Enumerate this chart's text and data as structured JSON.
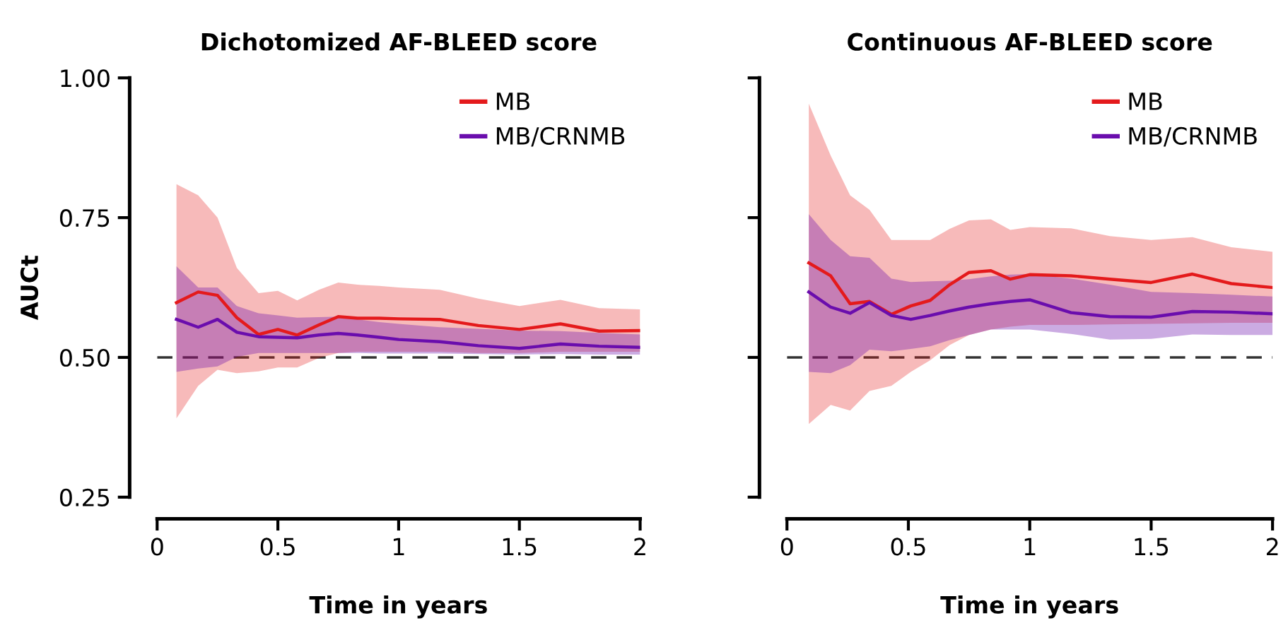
{
  "chart_data": [
    {
      "type": "line",
      "title": "Dichotomized AF-BLEED score",
      "xlabel": "Time in years",
      "ylabel": "AUCt",
      "xlim": [
        0,
        2
      ],
      "xticks": [
        0,
        0.5,
        1,
        1.5,
        2
      ],
      "ylim": [
        0.25,
        1.0
      ],
      "yticks": [
        {
          "value": 0.25,
          "label": "0.25"
        },
        {
          "value": 0.5,
          "label": "0.50"
        },
        {
          "value": 0.75,
          "label": "0.75"
        },
        {
          "value": 1.0,
          "label": "1.00"
        }
      ],
      "grid": false,
      "legend": "top right",
      "line_style": "solid",
      "ref_lines": [
        {
          "axis": "y",
          "value": 0.5,
          "color": "#333333",
          "line_style": "dashed"
        }
      ],
      "x": [
        0.08,
        0.17,
        0.25,
        0.33,
        0.42,
        0.5,
        0.58,
        0.67,
        0.75,
        0.83,
        0.92,
        1.0,
        1.17,
        1.33,
        1.5,
        1.67,
        1.83,
        2.0
      ],
      "series": [
        {
          "name": "MB",
          "color": "#e41a1c",
          "values": [
            0.598,
            0.617,
            0.611,
            0.571,
            0.541,
            0.55,
            0.54,
            0.558,
            0.573,
            0.57,
            0.57,
            0.569,
            0.568,
            0.557,
            0.55,
            0.56,
            0.547,
            0.548
          ],
          "upper": [
            0.81,
            0.79,
            0.75,
            0.66,
            0.615,
            0.619,
            0.602,
            0.621,
            0.634,
            0.63,
            0.628,
            0.625,
            0.621,
            0.605,
            0.592,
            0.603,
            0.588,
            0.586
          ],
          "lower": [
            0.391,
            0.449,
            0.478,
            0.472,
            0.475,
            0.482,
            0.482,
            0.499,
            0.508,
            0.51,
            0.51,
            0.51,
            0.51,
            0.508,
            0.508,
            0.51,
            0.51,
            0.51
          ]
        },
        {
          "name": "MB/CRNMB",
          "color": "#6a0dad",
          "values": [
            0.568,
            0.554,
            0.568,
            0.545,
            0.537,
            0.536,
            0.535,
            0.54,
            0.543,
            0.54,
            0.536,
            0.532,
            0.528,
            0.521,
            0.516,
            0.524,
            0.52,
            0.518
          ],
          "upper": [
            0.663,
            0.625,
            0.625,
            0.592,
            0.579,
            0.575,
            0.571,
            0.572,
            0.573,
            0.568,
            0.563,
            0.56,
            0.554,
            0.551,
            0.548,
            0.547,
            0.544,
            0.541
          ],
          "lower": [
            0.474,
            0.48,
            0.484,
            0.501,
            0.508,
            0.508,
            0.508,
            0.508,
            0.508,
            0.508,
            0.507,
            0.507,
            0.507,
            0.506,
            0.505,
            0.506,
            0.505,
            0.505
          ]
        }
      ]
    },
    {
      "type": "line",
      "title": "Continuous AF-BLEED score",
      "xlabel": "Time in years",
      "xlim": [
        0,
        2
      ],
      "xticks": [
        0,
        0.5,
        1,
        1.5,
        2
      ],
      "ylim": [
        0.25,
        1.0
      ],
      "yticks": [
        {
          "value": 0.25,
          "label": null
        },
        {
          "value": 0.5,
          "label": null
        },
        {
          "value": 0.75,
          "label": null
        },
        {
          "value": 1.0,
          "label": null
        }
      ],
      "tick_labels": "x",
      "grid": false,
      "legend": "top right",
      "line_style": "solid",
      "ref_lines": [
        {
          "axis": "y",
          "value": 0.5,
          "color": "#333333",
          "line_style": "dashed"
        }
      ],
      "x": [
        0.09,
        0.18,
        0.26,
        0.34,
        0.43,
        0.51,
        0.59,
        0.67,
        0.75,
        0.84,
        0.92,
        1.0,
        1.17,
        1.33,
        1.5,
        1.67,
        1.83,
        2.0
      ],
      "series": [
        {
          "name": "MB",
          "color": "#e41a1c",
          "values": [
            0.669,
            0.646,
            0.596,
            0.6,
            0.577,
            0.592,
            0.602,
            0.63,
            0.652,
            0.655,
            0.64,
            0.648,
            0.646,
            0.64,
            0.634,
            0.649,
            0.632,
            0.625
          ],
          "upper": [
            0.954,
            0.861,
            0.79,
            0.764,
            0.71,
            0.71,
            0.71,
            0.73,
            0.745,
            0.747,
            0.728,
            0.733,
            0.731,
            0.717,
            0.71,
            0.715,
            0.697,
            0.689
          ],
          "lower": [
            0.381,
            0.415,
            0.405,
            0.44,
            0.449,
            0.474,
            0.495,
            0.522,
            0.54,
            0.55,
            0.555,
            0.558,
            0.558,
            0.559,
            0.56,
            0.561,
            0.562,
            0.562
          ]
        },
        {
          "name": "MB/CRNMB",
          "color": "#6a0dad",
          "values": [
            0.617,
            0.59,
            0.579,
            0.598,
            0.575,
            0.568,
            0.575,
            0.583,
            0.59,
            0.596,
            0.6,
            0.603,
            0.58,
            0.573,
            0.572,
            0.582,
            0.581,
            0.578
          ],
          "upper": [
            0.756,
            0.71,
            0.681,
            0.678,
            0.641,
            0.635,
            0.636,
            0.637,
            0.64,
            0.645,
            0.648,
            0.649,
            0.641,
            0.63,
            0.617,
            0.615,
            0.612,
            0.609
          ],
          "lower": [
            0.474,
            0.472,
            0.486,
            0.514,
            0.511,
            0.515,
            0.52,
            0.531,
            0.54,
            0.55,
            0.55,
            0.55,
            0.542,
            0.532,
            0.533,
            0.541,
            0.54,
            0.54
          ]
        }
      ]
    }
  ]
}
